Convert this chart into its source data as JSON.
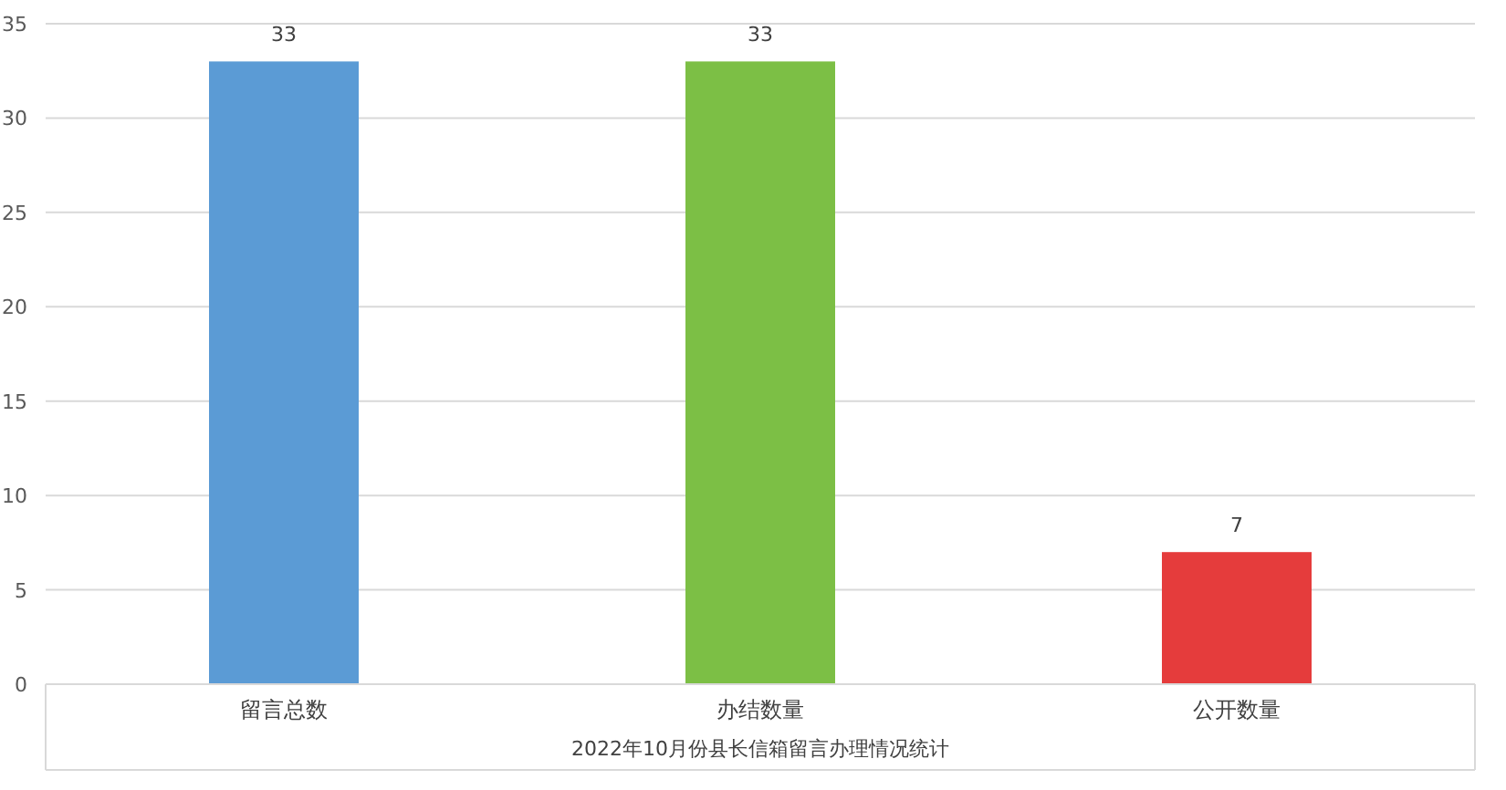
{
  "chart_data": {
    "type": "bar",
    "xlabel": "2022年10月份县长信箱留言办理情况统计",
    "categories": [
      "留言总数",
      "办结数量",
      "公开数量"
    ],
    "values": [
      33,
      33,
      7
    ],
    "colors": [
      "#5b9bd5",
      "#7cbf45",
      "#e53c3c"
    ],
    "ylim": [
      0,
      35
    ],
    "yticks": [
      0,
      5,
      10,
      15,
      20,
      25,
      30,
      35
    ],
    "grid": "y",
    "data_labels": true
  }
}
